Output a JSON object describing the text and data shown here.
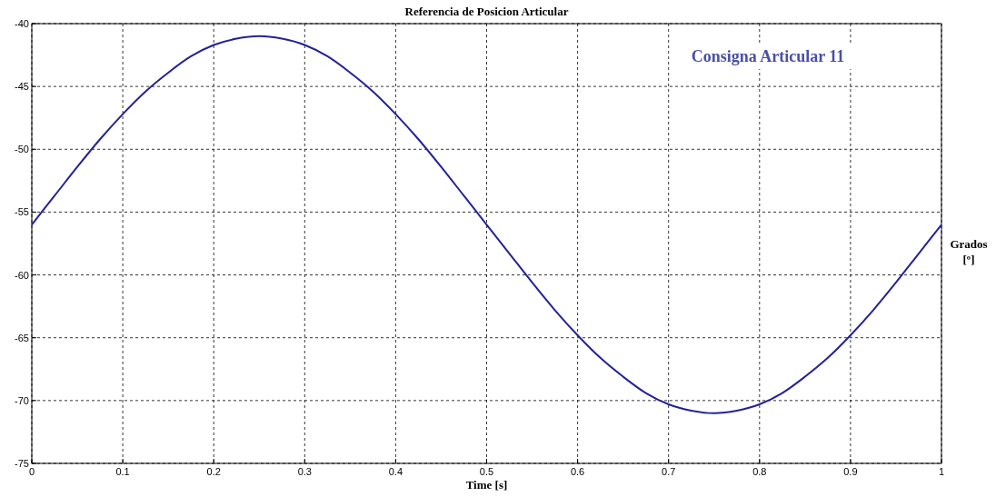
{
  "chart_data": {
    "type": "line",
    "title": "Referencia de Posicion Articular",
    "xlabel": "Time [s]",
    "ylabel": "Grados [º]",
    "annotations": [
      "Consigna Articular 11"
    ],
    "x": [
      0,
      0.025,
      0.05,
      0.075,
      0.1,
      0.125,
      0.15,
      0.175,
      0.2,
      0.225,
      0.25,
      0.275,
      0.3,
      0.325,
      0.35,
      0.375,
      0.4,
      0.425,
      0.45,
      0.475,
      0.5,
      0.525,
      0.55,
      0.575,
      0.6,
      0.625,
      0.65,
      0.675,
      0.7,
      0.725,
      0.75,
      0.775,
      0.8,
      0.825,
      0.85,
      0.875,
      0.9,
      0.925,
      0.95,
      0.975,
      1
    ],
    "series": [
      {
        "color": "#22229a",
        "values": [
          -56,
          -53.7,
          -51.4,
          -49.2,
          -47.2,
          -45.4,
          -43.9,
          -42.6,
          -41.7,
          -41.2,
          -41,
          -41.2,
          -41.7,
          -42.6,
          -43.9,
          -45.4,
          -47.2,
          -49.2,
          -51.4,
          -53.7,
          -56,
          -58.3,
          -60.6,
          -62.8,
          -64.8,
          -66.6,
          -68.1,
          -69.4,
          -70.3,
          -70.8,
          -71,
          -70.8,
          -70.3,
          -69.4,
          -68.1,
          -66.6,
          -64.8,
          -62.8,
          -60.6,
          -58.3,
          -56
        ]
      }
    ],
    "xlim": [
      0,
      1
    ],
    "xticks": [
      0,
      0.1,
      0.2,
      0.3,
      0.4,
      0.5,
      0.6,
      0.7,
      0.8,
      0.9,
      1
    ],
    "ylim": [
      -75,
      -40
    ],
    "yticks": [
      -75,
      -70,
      -65,
      -60,
      -55,
      -50,
      -45,
      -40
    ],
    "grid": true,
    "marker": "none",
    "line_style": "solid"
  }
}
